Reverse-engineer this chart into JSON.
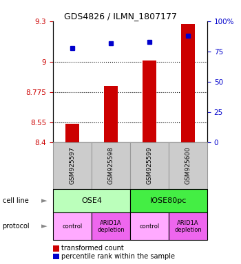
{
  "title": "GDS4826 / ILMN_1807177",
  "samples": [
    "GSM925597",
    "GSM925598",
    "GSM925599",
    "GSM925600"
  ],
  "bar_values": [
    8.54,
    8.82,
    9.01,
    9.28
  ],
  "percentile_values": [
    78,
    82,
    83,
    88
  ],
  "ylim_left": [
    8.4,
    9.3
  ],
  "ylim_right": [
    0,
    100
  ],
  "yticks_left": [
    8.4,
    8.55,
    8.775,
    9.0,
    9.3
  ],
  "ytick_labels_left": [
    "8.4",
    "8.55",
    "8.775",
    "9",
    "9.3"
  ],
  "yticks_right": [
    0,
    25,
    50,
    75,
    100
  ],
  "ytick_labels_right": [
    "0",
    "25",
    "50",
    "75",
    "100%"
  ],
  "hlines": [
    9.0,
    8.775,
    8.55
  ],
  "bar_color": "#cc0000",
  "dot_color": "#0000cc",
  "cell_line_groups": [
    {
      "label": "OSE4",
      "span": [
        0,
        2
      ],
      "color": "#bbffbb"
    },
    {
      "label": "IOSE80pc",
      "span": [
        2,
        4
      ],
      "color": "#44ee44"
    }
  ],
  "protocol_groups": [
    {
      "label": "control",
      "span": [
        0,
        1
      ],
      "color": "#ffaaff"
    },
    {
      "label": "ARID1A\ndepletion",
      "span": [
        1,
        2
      ],
      "color": "#ee66ee"
    },
    {
      "label": "control",
      "span": [
        2,
        3
      ],
      "color": "#ffaaff"
    },
    {
      "label": "ARID1A\ndepletion",
      "span": [
        3,
        4
      ],
      "color": "#ee66ee"
    }
  ],
  "legend_items": [
    {
      "color": "#cc0000",
      "label": "transformed count"
    },
    {
      "color": "#0000cc",
      "label": "percentile rank within the sample"
    }
  ],
  "left_tick_color": "#cc0000",
  "right_tick_color": "#0000cc",
  "bar_width": 0.35,
  "sample_bg_color": "#cccccc",
  "sample_border_color": "#999999"
}
